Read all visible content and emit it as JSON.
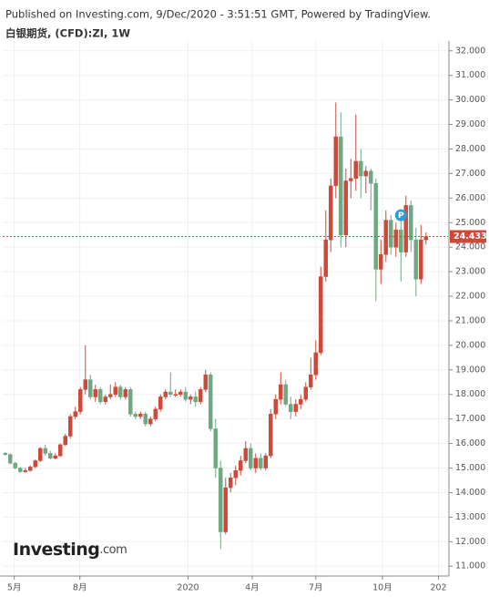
{
  "chart_data": {
    "type": "candlestick",
    "published": "Published on Investing.com, 9/Dec/2020 - 3:51:51 GMT, Powered by TradingView.",
    "title": "白银期货, (CFD):ZI, 1W",
    "logo_main": "Investing",
    "logo_suffix": ".com",
    "up_color": "#cd4a3a",
    "down_color": "#6fa882",
    "grid": true,
    "xlim": [
      -0.5,
      88.4
    ],
    "xticks": [
      {
        "value": 1.8,
        "label": "5月"
      },
      {
        "value": 14.9,
        "label": "8月"
      },
      {
        "value": 36.5,
        "label": "2020"
      },
      {
        "value": 49.3,
        "label": "4月"
      },
      {
        "value": 62,
        "label": "7月"
      },
      {
        "value": 75.3,
        "label": "10月"
      },
      {
        "value": 86.5,
        "label": "202"
      }
    ],
    "ylim": [
      10.6,
      32.4
    ],
    "yticks": [
      {
        "value": 11,
        "label": "11.000"
      },
      {
        "value": 12,
        "label": "12.000"
      },
      {
        "value": 13,
        "label": "13.000"
      },
      {
        "value": 14,
        "label": "14.000"
      },
      {
        "value": 15,
        "label": "15.000"
      },
      {
        "value": 16,
        "label": "16.000"
      },
      {
        "value": 17,
        "label": "17.000"
      },
      {
        "value": 18,
        "label": "18.000"
      },
      {
        "value": 19,
        "label": "19.000"
      },
      {
        "value": 20,
        "label": "20.000"
      },
      {
        "value": 21,
        "label": "21.000"
      },
      {
        "value": 22,
        "label": "22.000"
      },
      {
        "value": 23,
        "label": "23.000"
      },
      {
        "value": 24,
        "label": "24.000"
      },
      {
        "value": 25,
        "label": "25.000"
      },
      {
        "value": 26,
        "label": "26.000"
      },
      {
        "value": 27,
        "label": "27.000"
      },
      {
        "value": 28,
        "label": "28.000"
      },
      {
        "value": 29,
        "label": "29.000"
      },
      {
        "value": 30,
        "label": "30.000"
      },
      {
        "value": 31,
        "label": "31.000"
      },
      {
        "value": 32,
        "label": "32.000"
      }
    ],
    "last_price": 24.433,
    "marker": {
      "text": "P",
      "x": 79,
      "y": 25.3
    },
    "x": [
      0,
      1,
      2,
      3,
      4,
      5,
      6,
      7,
      8,
      9,
      10,
      11,
      12,
      13,
      14,
      15,
      16,
      17,
      18,
      19,
      20,
      21,
      22,
      23,
      24,
      25,
      26,
      27,
      28,
      29,
      30,
      31,
      32,
      33,
      34,
      35,
      36,
      37,
      38,
      39,
      40,
      41,
      42,
      43,
      44,
      45,
      46,
      47,
      48,
      49,
      50,
      51,
      52,
      53,
      54,
      55,
      56,
      57,
      58,
      59,
      60,
      61,
      62,
      63,
      64,
      65,
      66,
      67,
      68,
      69,
      70,
      71,
      72,
      73,
      74,
      75,
      76,
      77,
      78,
      79,
      80,
      81,
      82,
      83,
      84
    ],
    "open": [
      15.6,
      15.55,
      15.2,
      15.0,
      14.85,
      14.9,
      15.05,
      15.3,
      15.8,
      15.6,
      15.4,
      15.5,
      15.95,
      16.3,
      17.1,
      17.3,
      18.2,
      18.6,
      17.9,
      18.2,
      17.7,
      17.9,
      18.0,
      18.3,
      17.9,
      18.2,
      17.2,
      17.1,
      17.2,
      16.8,
      17.0,
      17.4,
      17.9,
      18.1,
      18.0,
      18.0,
      18.1,
      17.8,
      17.9,
      17.7,
      18.2,
      18.8,
      16.6,
      15.0,
      12.4,
      14.2,
      14.6,
      14.9,
      15.3,
      15.8,
      15.0,
      15.4,
      15.0,
      15.5,
      17.2,
      17.8,
      18.4,
      17.6,
      17.3,
      17.6,
      17.8,
      18.3,
      18.8,
      19.7,
      22.8,
      24.3,
      26.5,
      28.5,
      24.5,
      26.7,
      26.8,
      27.5,
      26.9,
      27.1,
      26.6,
      23.1,
      23.7,
      25.1,
      24.0,
      24.7,
      23.8,
      25.7,
      24.3,
      22.7,
      24.3
    ],
    "high": [
      15.65,
      15.6,
      15.25,
      15.05,
      15.0,
      15.1,
      15.35,
      15.85,
      15.95,
      15.7,
      15.6,
      16.0,
      16.4,
      17.2,
      17.5,
      18.3,
      20.0,
      18.8,
      18.4,
      18.3,
      18.0,
      18.4,
      18.5,
      18.4,
      18.3,
      18.3,
      17.3,
      17.3,
      17.3,
      17.1,
      17.5,
      18.0,
      18.2,
      18.9,
      18.2,
      18.2,
      18.3,
      18.0,
      18.1,
      18.3,
      19.0,
      18.9,
      17.0,
      15.3,
      14.6,
      14.8,
      15.1,
      15.5,
      16.1,
      16.0,
      15.6,
      15.6,
      15.6,
      17.4,
      18.0,
      18.9,
      18.6,
      17.9,
      17.8,
      18.0,
      18.5,
      19.5,
      20.2,
      23.2,
      25.5,
      26.8,
      29.9,
      29.5,
      27.2,
      27.6,
      29.4,
      28.0,
      27.3,
      27.2,
      26.8,
      24.3,
      25.5,
      25.3,
      25.0,
      25.1,
      26.1,
      25.9,
      24.8,
      24.9,
      24.6
    ],
    "low": [
      15.5,
      15.15,
      14.95,
      14.8,
      14.8,
      14.85,
      15.0,
      15.25,
      15.5,
      15.35,
      15.35,
      15.45,
      15.9,
      16.2,
      17.0,
      17.2,
      18.0,
      17.8,
      17.7,
      17.6,
      17.6,
      17.8,
      17.9,
      17.8,
      17.8,
      17.1,
      17.0,
      17.0,
      16.7,
      16.7,
      16.9,
      17.3,
      17.8,
      17.9,
      17.9,
      17.9,
      17.7,
      17.6,
      17.5,
      17.6,
      18.1,
      16.5,
      14.6,
      11.7,
      12.3,
      14.0,
      14.3,
      14.7,
      15.2,
      14.9,
      14.8,
      14.9,
      14.9,
      15.4,
      17.0,
      17.6,
      17.5,
      17.0,
      17.1,
      17.4,
      17.7,
      18.2,
      18.6,
      19.6,
      22.6,
      23.8,
      26.0,
      24.0,
      24.0,
      26.0,
      26.3,
      26.0,
      26.2,
      25.5,
      21.8,
      22.5,
      23.4,
      23.7,
      23.6,
      22.6,
      23.6,
      23.8,
      22.0,
      22.5,
      24.1
    ],
    "close": [
      15.55,
      15.2,
      15.0,
      14.85,
      14.9,
      15.05,
      15.3,
      15.8,
      15.6,
      15.4,
      15.5,
      15.95,
      16.3,
      17.1,
      17.3,
      18.2,
      18.6,
      17.9,
      18.2,
      17.7,
      17.9,
      18.0,
      18.3,
      17.9,
      18.2,
      17.2,
      17.1,
      17.2,
      16.8,
      17.0,
      17.4,
      17.9,
      18.1,
      18.0,
      18.0,
      18.1,
      17.8,
      17.9,
      17.7,
      18.2,
      18.8,
      16.6,
      15.0,
      12.4,
      14.2,
      14.6,
      14.9,
      15.3,
      15.8,
      15.0,
      15.4,
      15.0,
      15.5,
      17.2,
      17.8,
      18.4,
      17.6,
      17.3,
      17.6,
      17.8,
      18.3,
      18.8,
      19.7,
      22.8,
      24.3,
      26.5,
      28.5,
      24.5,
      26.7,
      26.8,
      27.5,
      26.9,
      27.1,
      26.6,
      23.1,
      23.7,
      25.1,
      24.0,
      24.7,
      23.8,
      25.7,
      24.3,
      22.7,
      24.3,
      24.433
    ]
  }
}
